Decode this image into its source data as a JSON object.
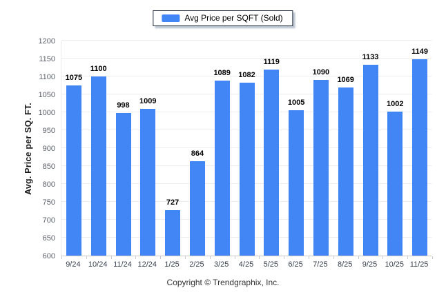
{
  "legend": {
    "label": "Avg Price per SQFT (Sold)",
    "swatch_color": "#4285F4"
  },
  "chart_data": {
    "type": "bar",
    "title": "",
    "series_name": "Avg Price per SQFT (Sold)",
    "categories": [
      "9/24",
      "10/24",
      "11/24",
      "12/24",
      "1/25",
      "2/25",
      "3/25",
      "4/25",
      "5/25",
      "6/25",
      "7/25",
      "8/25",
      "9/25",
      "10/25",
      "11/25"
    ],
    "values": [
      1075,
      1100,
      998,
      1009,
      727,
      864,
      1089,
      1082,
      1119,
      1005,
      1090,
      1069,
      1133,
      1002,
      1149
    ],
    "xlabel": "",
    "ylabel": "Avg. Price per SQ. FT.",
    "ylim": [
      600,
      1200
    ],
    "ytick_step": 50,
    "grid": "horizontal",
    "legend_position": "top-center",
    "value_labels": true,
    "bar_color": "#4285F4",
    "gridline_color": "#ededed",
    "axis_line_color": "#c9c9c9"
  },
  "footer": {
    "text": "Copyright © Trendgraphix, Inc."
  }
}
